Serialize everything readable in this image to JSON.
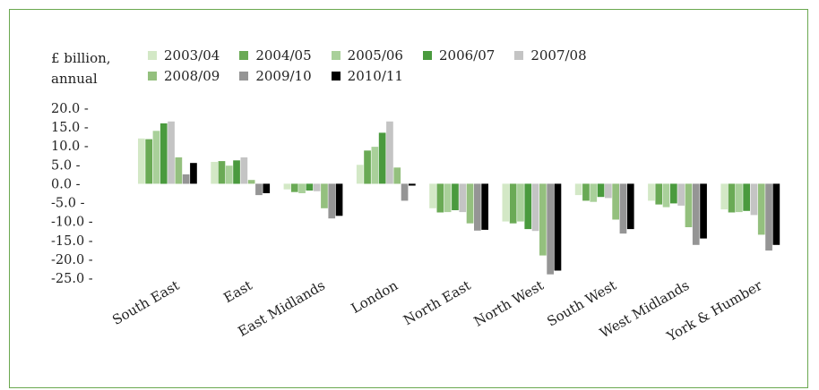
{
  "chart_data": {
    "type": "bar",
    "unit_label": [
      "£ billion,",
      "annual"
    ],
    "categories": [
      "South East",
      "East",
      "East Midlands",
      "London",
      "North East",
      "North West",
      "South West",
      "West Midlands",
      "York & Humber"
    ],
    "yticks": [
      "20.0 -",
      "15.0 -",
      "10.0 -",
      "5.0 -",
      "0.0 -",
      "-5.0 -",
      "-10.0 -",
      "-15.0 -",
      "-20.0 -",
      "-25.0 -"
    ],
    "ylim": [
      -25,
      20
    ],
    "legend_placement": "top",
    "series": [
      {
        "name": "2003/04",
        "color": "#d3e8c6",
        "values": [
          12.0,
          5.8,
          -1.5,
          5.0,
          -6.5,
          -10.0,
          -3.0,
          -4.5,
          -6.8
        ]
      },
      {
        "name": "2004/05",
        "color": "#6aaa55",
        "values": [
          11.8,
          6.0,
          -2.2,
          8.8,
          -7.6,
          -10.5,
          -4.5,
          -5.5,
          -7.6
        ]
      },
      {
        "name": "2005/06",
        "color": "#a9d09a",
        "values": [
          14.0,
          4.8,
          -2.5,
          9.8,
          -7.5,
          -10.0,
          -4.8,
          -6.2,
          -7.5
        ]
      },
      {
        "name": "2006/07",
        "color": "#4a9a3e",
        "values": [
          16.0,
          6.2,
          -1.8,
          13.5,
          -7.0,
          -12.0,
          -3.5,
          -5.2,
          -7.2
        ]
      },
      {
        "name": "2007/08",
        "color": "#c4c4c4",
        "values": [
          16.5,
          7.0,
          -2.0,
          16.5,
          -7.5,
          -12.5,
          -3.8,
          -5.8,
          -8.3
        ]
      },
      {
        "name": "2008/09",
        "color": "#94c07e",
        "values": [
          7.0,
          1.0,
          -6.5,
          4.3,
          -10.5,
          -19.0,
          -9.5,
          -11.5,
          -13.5
        ]
      },
      {
        "name": "2009/10",
        "color": "#959595",
        "values": [
          2.5,
          -3.0,
          -9.2,
          -4.5,
          -12.4,
          -24.0,
          -13.2,
          -16.2,
          -17.7
        ]
      },
      {
        "name": "2010/11",
        "color": "#000000",
        "values": [
          5.5,
          -2.5,
          -8.5,
          -0.5,
          -12.2,
          -23.0,
          -12.0,
          -14.5,
          -16.2
        ]
      }
    ]
  }
}
